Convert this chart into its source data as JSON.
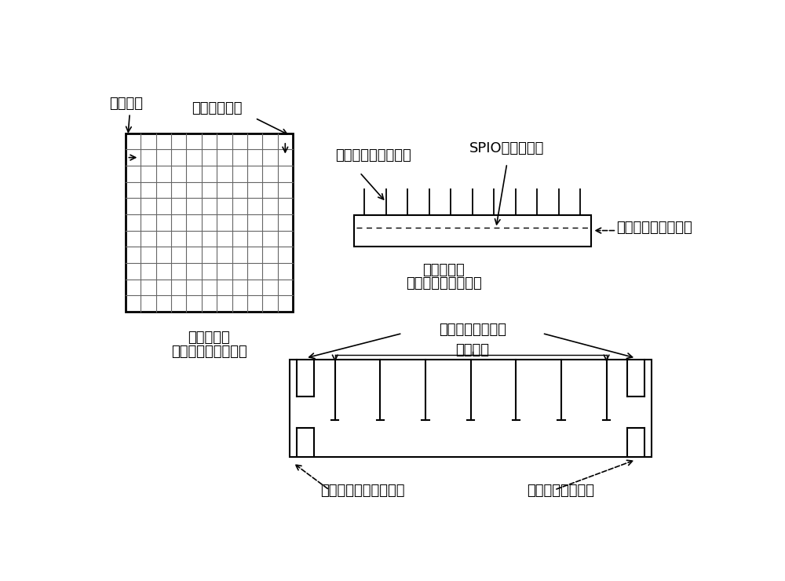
{
  "bg_color": "#ffffff",
  "line_color": "#000000",
  "grid_color": "#666666",
  "grid_rows": 11,
  "grid_cols": 11,
  "labels": {
    "initial_lattice": "初始晶格",
    "add_order": "添加晶格顺序",
    "top_view_title1": "栊格探测板",
    "top_view_title2": "（构建完毕，俧视）",
    "vertical_sep": "纵向隔离板（反插）",
    "spio_level": "SPIO添加水位线",
    "horizontal_sep": "横向隔离板（正插）",
    "side_view_title1": "栊格探测板",
    "side_view_title2": "（构建完毕，侧视）",
    "edge_slot_rev": "边缘插口（反向）",
    "gap_slot": "间隔插口",
    "sep_plate": "栊格探测板（隔离板）",
    "edge_slot_fwd": "边缘插口（正向）"
  },
  "font_size": 13,
  "small_font": 11
}
